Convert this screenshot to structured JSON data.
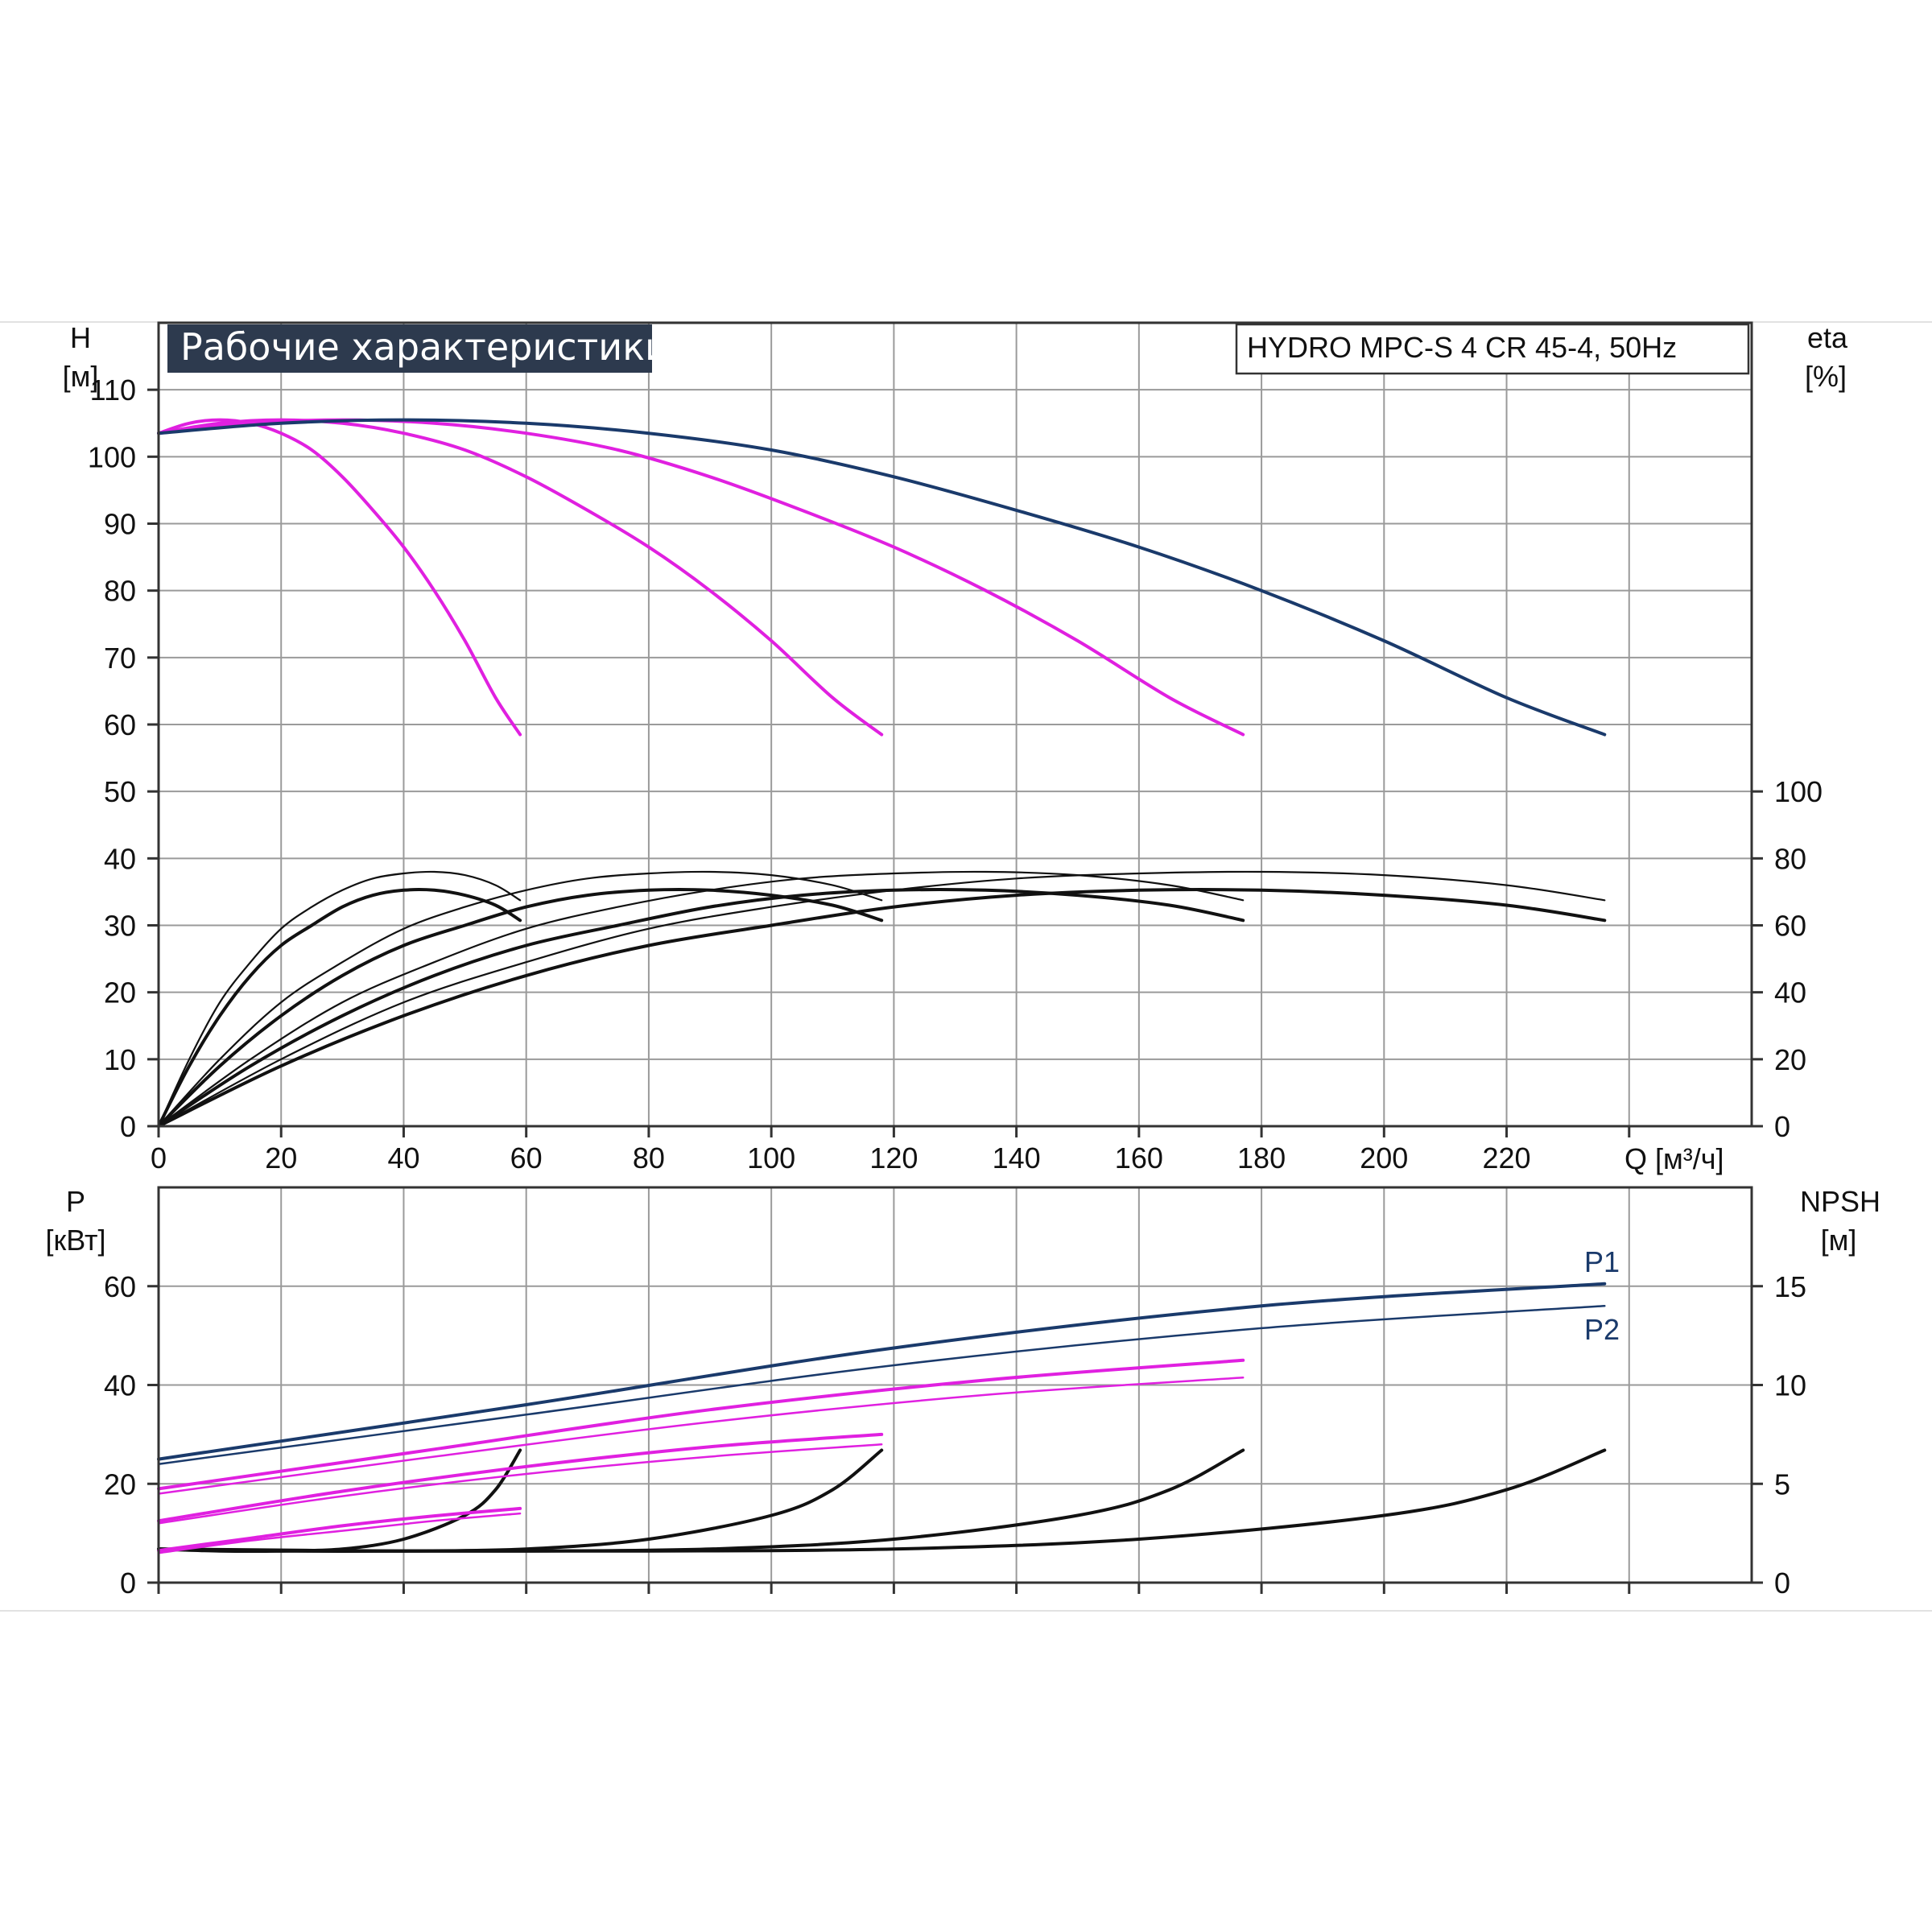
{
  "colors": {
    "navy": "#1a3a6b",
    "magenta": "#e020e0",
    "black": "#111111",
    "grid": "#9a9a9a",
    "badge_bg": "#2d3a4e"
  },
  "chart_data": [
    {
      "type": "line",
      "title": "Рабочие характеристики",
      "subtitle": "HYDRO MPC-S 4 CR 45-4, 50Hz",
      "y_label_symbol": "H",
      "y_label_unit": "[м]",
      "y2_label_symbol": "eta",
      "y2_label_unit": "[%]",
      "x_label": "Q [м³/ч]",
      "xlim": [
        0,
        260
      ],
      "ylim": [
        0,
        120
      ],
      "y2lim": [
        0,
        100
      ],
      "x_ticks": [
        "0",
        "20",
        "40",
        "60",
        "80",
        "100",
        "120",
        "140",
        "160",
        "180",
        "200",
        "220"
      ],
      "y_ticks": [
        "0",
        "10",
        "20",
        "30",
        "40",
        "50",
        "60",
        "70",
        "80",
        "90",
        "100",
        "110"
      ],
      "y2_ticks": [
        "0",
        "20",
        "40",
        "60",
        "80",
        "100"
      ],
      "grid": true,
      "head_series": [
        {
          "pumps": 1,
          "color": "magenta",
          "x": [
            0,
            5,
            10,
            15,
            20,
            25,
            30,
            35,
            40,
            45,
            50,
            55,
            59
          ],
          "y": [
            103.5,
            105,
            105.5,
            105,
            103.5,
            101,
            97,
            92,
            86.5,
            80,
            72.5,
            64,
            58.5
          ]
        },
        {
          "pumps": 2,
          "color": "magenta",
          "x": [
            0,
            10,
            20,
            30,
            40,
            50,
            60,
            70,
            80,
            90,
            100,
            110,
            118
          ],
          "y": [
            103.5,
            105,
            105.5,
            105,
            103.5,
            101,
            97,
            92,
            86.5,
            80,
            72.5,
            64,
            58.5
          ]
        },
        {
          "pumps": 3,
          "color": "magenta",
          "x": [
            0,
            15,
            30,
            45,
            60,
            75,
            90,
            105,
            120,
            135,
            150,
            165,
            177
          ],
          "y": [
            103.5,
            105,
            105.5,
            105,
            103.5,
            101,
            97,
            92,
            86.5,
            80,
            72.5,
            64,
            58.5
          ]
        },
        {
          "pumps": 4,
          "color": "navy",
          "x": [
            0,
            20,
            40,
            60,
            80,
            100,
            120,
            140,
            160,
            180,
            200,
            220,
            236
          ],
          "y": [
            103.5,
            105,
            105.5,
            105,
            103.5,
            101,
            97,
            92,
            86.5,
            80,
            72.5,
            64,
            58.5
          ]
        }
      ],
      "efficiency_series": [
        {
          "pumps": 1,
          "curve": "upper",
          "x": [
            0,
            5,
            10,
            15,
            20,
            25,
            30,
            35,
            40,
            45,
            50,
            55,
            59
          ],
          "y": [
            0,
            20,
            37,
            49,
            59,
            65.5,
            70.5,
            74,
            75.5,
            76,
            75,
            72,
            67.5
          ]
        },
        {
          "pumps": 1,
          "curve": "lower",
          "x": [
            0,
            5,
            10,
            15,
            20,
            25,
            30,
            35,
            40,
            45,
            50,
            55,
            59
          ],
          "y": [
            0,
            18,
            33,
            45,
            54,
            60,
            65.5,
            69,
            70.5,
            70.5,
            69,
            66,
            61.5
          ]
        },
        {
          "pumps": 2,
          "curve": "upper",
          "x": [
            0,
            10,
            20,
            30,
            40,
            50,
            60,
            70,
            80,
            90,
            100,
            110,
            118
          ],
          "y": [
            0,
            20,
            37,
            49,
            59,
            65.5,
            70.5,
            74,
            75.5,
            76,
            75,
            72,
            67.5
          ]
        },
        {
          "pumps": 2,
          "curve": "lower",
          "x": [
            0,
            10,
            20,
            30,
            40,
            50,
            60,
            70,
            80,
            90,
            100,
            110,
            118
          ],
          "y": [
            0,
            18,
            33,
            45,
            54,
            60,
            65.5,
            69,
            70.5,
            70.5,
            69,
            66,
            61.5
          ]
        },
        {
          "pumps": 3,
          "curve": "upper",
          "x": [
            0,
            15,
            30,
            45,
            60,
            75,
            90,
            105,
            120,
            135,
            150,
            165,
            177
          ],
          "y": [
            0,
            20,
            37,
            49,
            59,
            65.5,
            70.5,
            74,
            75.5,
            76,
            75,
            72,
            67.5
          ]
        },
        {
          "pumps": 3,
          "curve": "lower",
          "x": [
            0,
            15,
            30,
            45,
            60,
            75,
            90,
            105,
            120,
            135,
            150,
            165,
            177
          ],
          "y": [
            0,
            18,
            33,
            45,
            54,
            60,
            65.5,
            69,
            70.5,
            70.5,
            69,
            66,
            61.5
          ]
        },
        {
          "pumps": 4,
          "curve": "upper",
          "x": [
            0,
            20,
            40,
            60,
            80,
            100,
            120,
            140,
            160,
            180,
            200,
            220,
            236
          ],
          "y": [
            0,
            20,
            37,
            49,
            59,
            65.5,
            70.5,
            74,
            75.5,
            76,
            75,
            72,
            67.5
          ]
        },
        {
          "pumps": 4,
          "curve": "lower",
          "x": [
            0,
            20,
            40,
            60,
            80,
            100,
            120,
            140,
            160,
            180,
            200,
            220,
            236
          ],
          "y": [
            0,
            18,
            33,
            45,
            54,
            60,
            65.5,
            69,
            70.5,
            70.5,
            69,
            66,
            61.5
          ]
        }
      ]
    },
    {
      "type": "line",
      "y_label_symbol": "P",
      "y_label_unit": "[кВт]",
      "y2_label_symbol": "NPSH",
      "y2_label_unit": "[м]",
      "xlim": [
        0,
        260
      ],
      "ylim": [
        0,
        80
      ],
      "y2lim": [
        0,
        20
      ],
      "y_ticks": [
        "0",
        "20",
        "40",
        "60"
      ],
      "y2_ticks": [
        "0",
        "5",
        "10",
        "15"
      ],
      "grid": true,
      "labels": {
        "p1": "P1",
        "p2": "P2"
      },
      "power_series": [
        {
          "name": "P1",
          "pumps": 1,
          "color": "magenta",
          "x": [
            0,
            15,
            30,
            45,
            59
          ],
          "y": [
            6.5,
            9,
            11.5,
            13.5,
            15
          ]
        },
        {
          "name": "P2",
          "pumps": 1,
          "color": "magenta",
          "x": [
            0,
            15,
            30,
            45,
            59
          ],
          "y": [
            6,
            8.5,
            10.5,
            12.5,
            14
          ]
        },
        {
          "name": "P1",
          "pumps": 2,
          "color": "magenta",
          "x": [
            0,
            30,
            60,
            90,
            118
          ],
          "y": [
            12.5,
            18.5,
            23.5,
            27.5,
            30
          ]
        },
        {
          "name": "P2",
          "pumps": 2,
          "color": "magenta",
          "x": [
            0,
            30,
            60,
            90,
            118
          ],
          "y": [
            12,
            17.5,
            22,
            25.5,
            28
          ]
        },
        {
          "name": "P1",
          "pumps": 3,
          "color": "magenta",
          "x": [
            0,
            45,
            90,
            135,
            177
          ],
          "y": [
            19,
            27,
            35,
            41,
            45
          ]
        },
        {
          "name": "P2",
          "pumps": 3,
          "color": "magenta",
          "x": [
            0,
            45,
            90,
            135,
            177
          ],
          "y": [
            18,
            25.5,
            32.5,
            38,
            41.5
          ]
        },
        {
          "name": "P1",
          "pumps": 4,
          "color": "navy",
          "x": [
            0,
            60,
            120,
            180,
            236
          ],
          "y": [
            25,
            36,
            47.5,
            56,
            60.5
          ]
        },
        {
          "name": "P2",
          "pumps": 4,
          "color": "navy",
          "x": [
            0,
            60,
            120,
            180,
            236
          ],
          "y": [
            24,
            34,
            44,
            51.5,
            56
          ]
        }
      ],
      "npsh_series": [
        {
          "pumps": 1,
          "x": [
            0,
            10,
            20,
            30,
            40,
            50,
            55,
            59
          ],
          "y": [
            1.7,
            1.6,
            1.6,
            1.7,
            2.2,
            3.4,
            4.7,
            6.7
          ]
        },
        {
          "pumps": 2,
          "x": [
            0,
            20,
            40,
            60,
            80,
            100,
            110,
            118
          ],
          "y": [
            1.7,
            1.6,
            1.6,
            1.7,
            2.2,
            3.4,
            4.7,
            6.7
          ]
        },
        {
          "pumps": 3,
          "x": [
            0,
            30,
            60,
            90,
            120,
            150,
            165,
            177
          ],
          "y": [
            1.7,
            1.6,
            1.6,
            1.7,
            2.2,
            3.4,
            4.7,
            6.7
          ]
        },
        {
          "pumps": 4,
          "x": [
            0,
            40,
            80,
            120,
            160,
            200,
            220,
            236
          ],
          "y": [
            1.7,
            1.6,
            1.6,
            1.7,
            2.2,
            3.4,
            4.7,
            6.7
          ]
        }
      ]
    }
  ]
}
